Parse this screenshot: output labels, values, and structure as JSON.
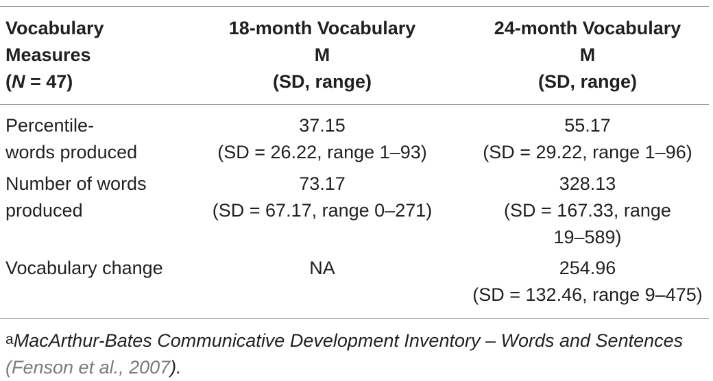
{
  "header": {
    "col1": {
      "line1": "Vocabulary",
      "line2": "Measures",
      "n_open": "(",
      "n_var": "N",
      "n_rest": " = 47)"
    },
    "col2": {
      "line1": "18-month Vocabulary",
      "line2": "M",
      "line3": "(SD, range)"
    },
    "col3": {
      "line1": "24-month Vocabulary",
      "line2": "M",
      "line3": "(SD, range)"
    }
  },
  "rows": [
    {
      "label": [
        "Percentile-",
        "words produced"
      ],
      "m18": [
        "37.15",
        "(SD = 26.22, range 1–93)"
      ],
      "m24": [
        "55.17",
        "(SD = 29.22, range 1–96)"
      ]
    },
    {
      "label": [
        "Number of words",
        "produced"
      ],
      "m18": [
        "73.17",
        "(SD = 67.17, range 0–271)"
      ],
      "m24": [
        "328.13",
        "(SD = 167.33, range",
        "19–589)"
      ]
    },
    {
      "label": [
        "Vocabulary change"
      ],
      "m18": [
        "NA"
      ],
      "m24": [
        "254.96",
        "(SD = 132.46, range 9–475)"
      ]
    }
  ],
  "footnote": {
    "marker": "a",
    "text": "MacArthur-Bates Communicative Development Inventory – Words and Sentences",
    "cite_open": "(",
    "cite": "Fenson et al., 2007",
    "cite_close": ")."
  }
}
